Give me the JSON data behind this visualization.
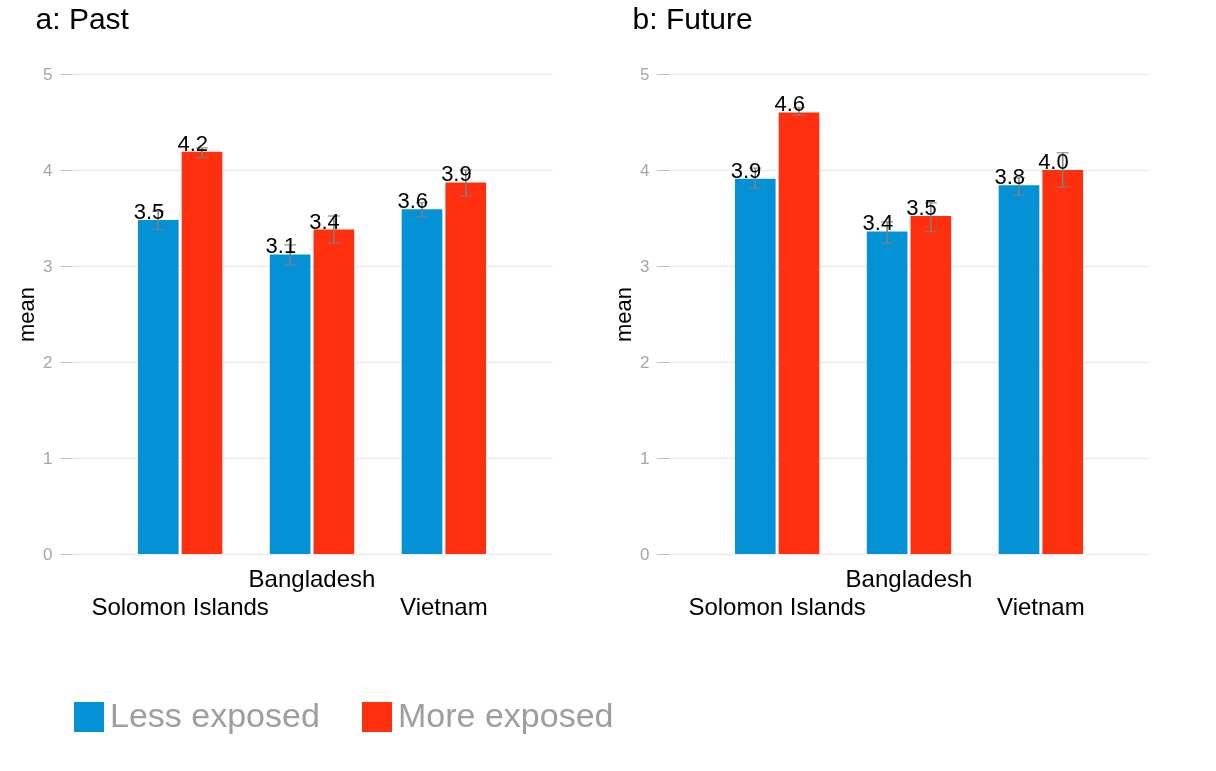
{
  "chart_data": [
    {
      "type": "bar",
      "title": "a: Past",
      "ylabel": "mean",
      "categories": [
        "Solomon Islands",
        "Bangladesh",
        "Vietnam"
      ],
      "ylim": [
        0,
        5
      ],
      "yticks": [
        0,
        1,
        2,
        3,
        4,
        5
      ],
      "grid": true,
      "legend": "bottom",
      "series": [
        {
          "name": "Less exposed",
          "color": "#0591d6",
          "values": [
            3.48,
            3.12,
            3.59
          ],
          "errors": [
            [
              3.38,
              3.57
            ],
            [
              3.01,
              3.22
            ],
            [
              3.51,
              3.66
            ]
          ],
          "value_labels": [
            "3.5",
            "3.1",
            "3.6"
          ]
        },
        {
          "name": "More exposed",
          "color": "#ff3010",
          "values": [
            4.19,
            3.38,
            3.87
          ],
          "errors": [
            [
              4.13,
              4.23
            ],
            [
              3.24,
              3.52
            ],
            [
              3.73,
              4.0
            ]
          ],
          "value_labels": [
            "4.2",
            "3.4",
            "3.9"
          ]
        }
      ]
    },
    {
      "type": "bar",
      "title": "b: Future",
      "ylabel": "mean",
      "categories": [
        "Solomon Islands",
        "Bangladesh",
        "Vietnam"
      ],
      "ylim": [
        0,
        5
      ],
      "yticks": [
        0,
        1,
        2,
        3,
        4,
        5
      ],
      "grid": true,
      "legend": "bottom",
      "series": [
        {
          "name": "Less exposed",
          "color": "#0591d6",
          "values": [
            3.91,
            3.36,
            3.84
          ],
          "errors": [
            [
              3.81,
              4.02
            ],
            [
              3.24,
              3.46
            ],
            [
              3.74,
              3.92
            ]
          ],
          "value_labels": [
            "3.9",
            "3.4",
            "3.8"
          ]
        },
        {
          "name": "More exposed",
          "color": "#ff3010",
          "values": [
            4.6,
            3.52,
            4.0
          ],
          "errors": [
            [
              4.57,
              4.65
            ],
            [
              3.36,
              3.66
            ],
            [
              3.82,
              4.18
            ]
          ],
          "value_labels": [
            "4.6",
            "3.5",
            "4.0"
          ]
        }
      ]
    }
  ]
}
